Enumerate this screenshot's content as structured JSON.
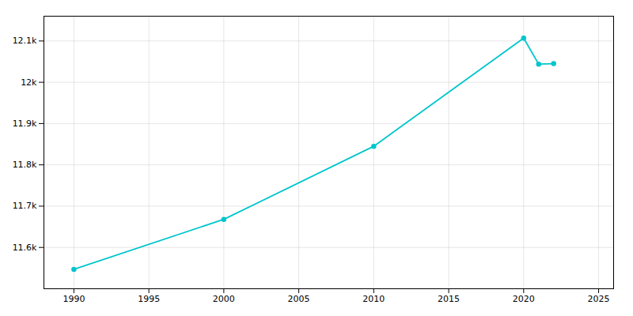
{
  "chart_data": {
    "type": "line",
    "x": [
      1990,
      2000,
      2010,
      2020,
      2021,
      2022
    ],
    "values": [
      11547,
      11668,
      11845,
      12107,
      12044,
      12045
    ],
    "color": "#00c5cd",
    "marker": "circle",
    "xlim": [
      1988,
      2026
    ],
    "xticks": [
      1990,
      1995,
      2000,
      2005,
      2010,
      2015,
      2020,
      2025
    ],
    "ylim": [
      11500,
      12160
    ],
    "yticks": [
      {
        "value": 11600,
        "label": "11.6k"
      },
      {
        "value": 11700,
        "label": "11.7k"
      },
      {
        "value": 11800,
        "label": "11.8k"
      },
      {
        "value": 11900,
        "label": "11.9k"
      },
      {
        "value": 12000,
        "label": "12k"
      },
      {
        "value": 12100,
        "label": "12.1k"
      }
    ],
    "grid": true
  }
}
